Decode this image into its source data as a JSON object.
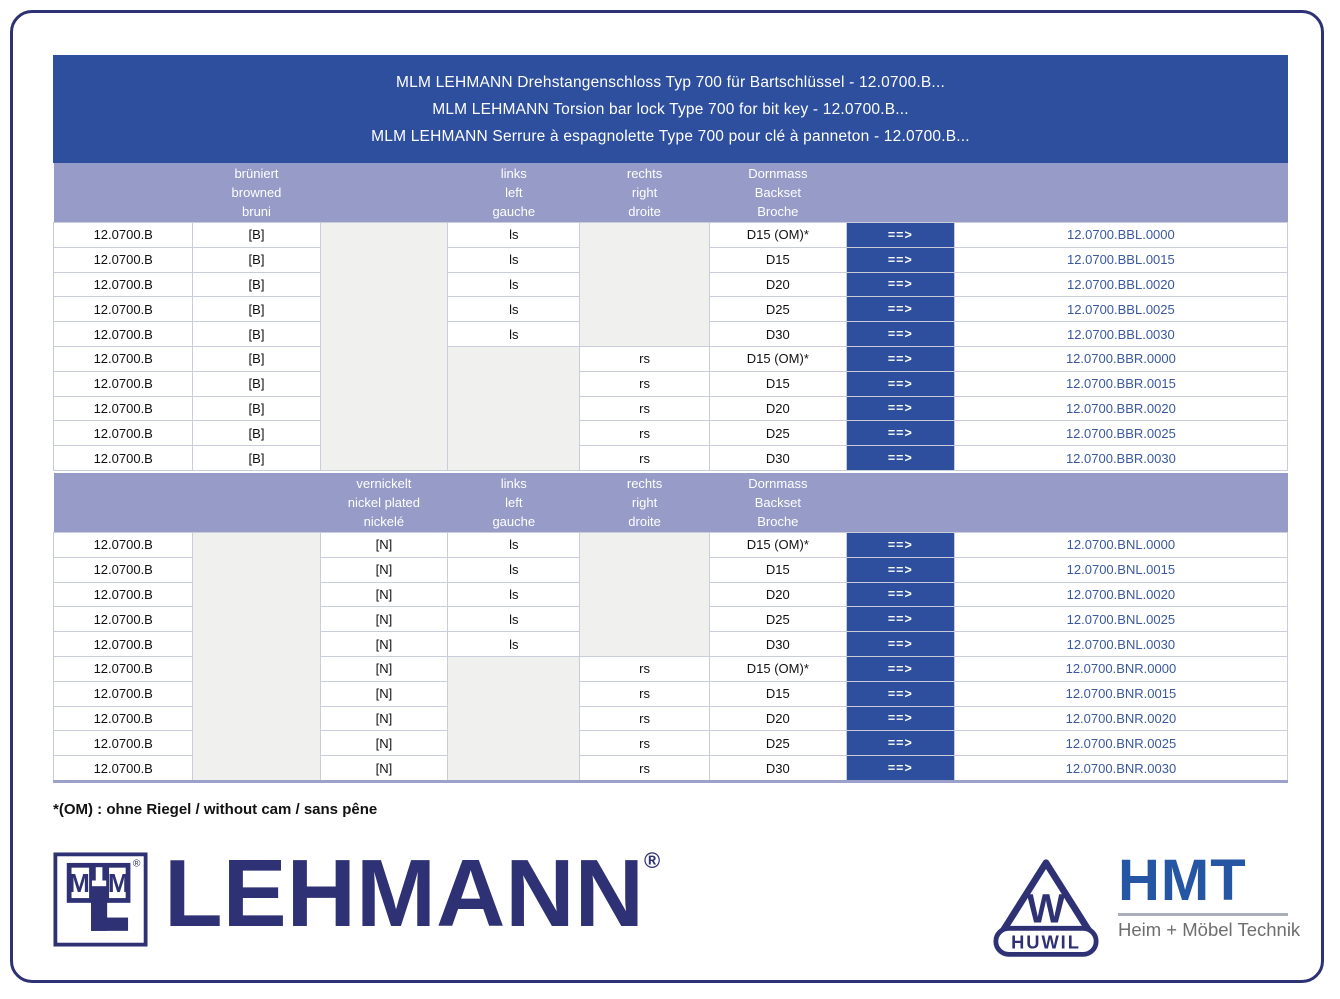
{
  "page": {
    "header_lines": [
      "MLM LEHMANN Drehstangenschloss Typ 700 für Bartschlüssel - 12.0700.B...",
      "MLM LEHMANN Torsion bar lock Type 700 for bit key -  12.0700.B...",
      "MLM LEHMANN  Serrure à espagnolette Type 700 pour clé à panneton - 12.0700.B..."
    ],
    "footnote": "*(OM) : ohne Riegel / without cam / sans pêne"
  },
  "table": {
    "arrow_label": "==>",
    "sections": [
      {
        "name": "browned",
        "finish_header": {
          "l1": "brüniert",
          "l2": "browned",
          "l3": "bruni"
        },
        "links_header": {
          "l1": "links",
          "l2": "left",
          "l3": "gauche"
        },
        "rechts_header": {
          "l1": "rechts",
          "l2": "right",
          "l3": "droite"
        },
        "backset_header": {
          "l1": "Dornmass",
          "l2": "Backset",
          "l3": "Broche"
        },
        "rows": [
          {
            "base": "12.0700.B",
            "finish": "[B]",
            "side": "ls",
            "backset": "D15 (OM)*",
            "code": "12.0700.BBL.0000"
          },
          {
            "base": "12.0700.B",
            "finish": "[B]",
            "side": "ls",
            "backset": "D15",
            "code": "12.0700.BBL.0015"
          },
          {
            "base": "12.0700.B",
            "finish": "[B]",
            "side": "ls",
            "backset": "D20",
            "code": "12.0700.BBL.0020"
          },
          {
            "base": "12.0700.B",
            "finish": "[B]",
            "side": "ls",
            "backset": "D25",
            "code": "12.0700.BBL.0025"
          },
          {
            "base": "12.0700.B",
            "finish": "[B]",
            "side": "ls",
            "backset": "D30",
            "code": "12.0700.BBL.0030"
          },
          {
            "base": "12.0700.B",
            "finish": "[B]",
            "side": "rs",
            "backset": "D15 (OM)*",
            "code": "12.0700.BBR.0000"
          },
          {
            "base": "12.0700.B",
            "finish": "[B]",
            "side": "rs",
            "backset": "D15",
            "code": "12.0700.BBR.0015"
          },
          {
            "base": "12.0700.B",
            "finish": "[B]",
            "side": "rs",
            "backset": "D20",
            "code": "12.0700.BBR.0020"
          },
          {
            "base": "12.0700.B",
            "finish": "[B]",
            "side": "rs",
            "backset": "D25",
            "code": "12.0700.BBR.0025"
          },
          {
            "base": "12.0700.B",
            "finish": "[B]",
            "side": "rs",
            "backset": "D30",
            "code": "12.0700.BBR.0030"
          }
        ]
      },
      {
        "name": "nickel-plated",
        "finish_header": {
          "l1": "vernickelt",
          "l2": "nickel plated",
          "l3": "nickelé"
        },
        "links_header": {
          "l1": "links",
          "l2": "left",
          "l3": "gauche"
        },
        "rechts_header": {
          "l1": "rechts",
          "l2": "right",
          "l3": "droite"
        },
        "backset_header": {
          "l1": "Dornmass",
          "l2": "Backset",
          "l3": "Broche"
        },
        "rows": [
          {
            "base": "12.0700.B",
            "finish": "[N]",
            "side": "ls",
            "backset": "D15 (OM)*",
            "code": "12.0700.BNL.0000"
          },
          {
            "base": "12.0700.B",
            "finish": "[N]",
            "side": "ls",
            "backset": "D15",
            "code": "12.0700.BNL.0015"
          },
          {
            "base": "12.0700.B",
            "finish": "[N]",
            "side": "ls",
            "backset": "D20",
            "code": "12.0700.BNL.0020"
          },
          {
            "base": "12.0700.B",
            "finish": "[N]",
            "side": "ls",
            "backset": "D25",
            "code": "12.0700.BNL.0025"
          },
          {
            "base": "12.0700.B",
            "finish": "[N]",
            "side": "ls",
            "backset": "D30",
            "code": "12.0700.BNL.0030"
          },
          {
            "base": "12.0700.B",
            "finish": "[N]",
            "side": "rs",
            "backset": "D15 (OM)*",
            "code": "12.0700.BNR.0000"
          },
          {
            "base": "12.0700.B",
            "finish": "[N]",
            "side": "rs",
            "backset": "D15",
            "code": "12.0700.BNR.0015"
          },
          {
            "base": "12.0700.B",
            "finish": "[N]",
            "side": "rs",
            "backset": "D20",
            "code": "12.0700.BNR.0020"
          },
          {
            "base": "12.0700.B",
            "finish": "[N]",
            "side": "rs",
            "backset": "D25",
            "code": "12.0700.BNR.0025"
          },
          {
            "base": "12.0700.B",
            "finish": "[N]",
            "side": "rs",
            "backset": "D30",
            "code": "12.0700.BNR.0030"
          }
        ]
      }
    ]
  },
  "logos": {
    "mlm_m1": "M",
    "mlm_m2": "M",
    "mlm_reg": "®",
    "lehmann_text": "LEHMANN",
    "lehmann_reg": "®",
    "huwil_w": "W",
    "huwil_name": "HUWIL",
    "hmt_text": "HMT",
    "hmt_tagline": "Heim + Möbel Technik"
  },
  "colors": {
    "header_blue": "#2d4f9e",
    "band_lavender": "#969bc8",
    "arrow_blue": "#2d4f9e",
    "code_blue": "#39589d",
    "navy": "#2e3173",
    "hmt_blue": "#2456a4",
    "cell_gray": "#f0f0ef"
  }
}
